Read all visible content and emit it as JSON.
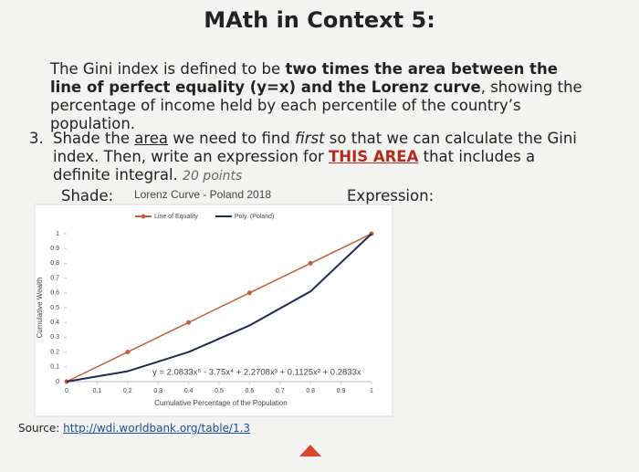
{
  "header": {
    "title": "MAth in Context 5:"
  },
  "intro": {
    "part1": "The Gini index is defined to be ",
    "bold": "two times the area between the line of perfect equality (y=x) and the Lorenz curve",
    "part2": ", showing the percentage of income held by each percentile of the country’s population."
  },
  "question": {
    "number": "3.",
    "part1": "Shade the ",
    "underlined": "area",
    "part2": " we need to find ",
    "italic": "first",
    "part3": " so that we can calculate the Gini index. Then, write an expression for ",
    "emphasis": "THIS AREA",
    "part4": " that includes a definite integral.",
    "points": "20 points",
    "shade_label": "Shade:",
    "expression_label": "Expression:"
  },
  "source": {
    "label": "Source:",
    "link": "http://wdi.worldbank.org/table/1.3"
  },
  "chart_data": {
    "type": "line",
    "title": "Lorenz Curve - Poland 2018",
    "x": [
      0,
      0.2,
      0.4,
      0.6,
      0.8,
      1
    ],
    "series": [
      {
        "name": "Line of Equality",
        "color": "#c0603a",
        "values": [
          0,
          0.2,
          0.4,
          0.6,
          0.8,
          1
        ],
        "markers": true
      },
      {
        "name": "Poly. (Poland)",
        "color": "#1f2a50",
        "values": [
          0,
          0.07,
          0.2,
          0.38,
          0.61,
          1
        ],
        "markers": false
      }
    ],
    "xlabel": "Cumulative Percentage of the Population",
    "ylabel": "Cumulative Wealth",
    "annotation": "y = 2.0833x⁵ - 3.75x⁴ + 2.2708x³ + 0.1125x² + 0.2833x",
    "xlim": [
      0,
      1
    ],
    "ylim": [
      0,
      1
    ],
    "xticks": [
      0,
      0.1,
      0.2,
      0.3,
      0.4,
      0.5,
      0.6,
      0.7,
      0.8,
      0.9,
      1
    ],
    "yticks": [
      0,
      0.1,
      0.2,
      0.3,
      0.4,
      0.5,
      0.6,
      0.7,
      0.8,
      0.9,
      1
    ],
    "grid": false,
    "legend": "top"
  }
}
